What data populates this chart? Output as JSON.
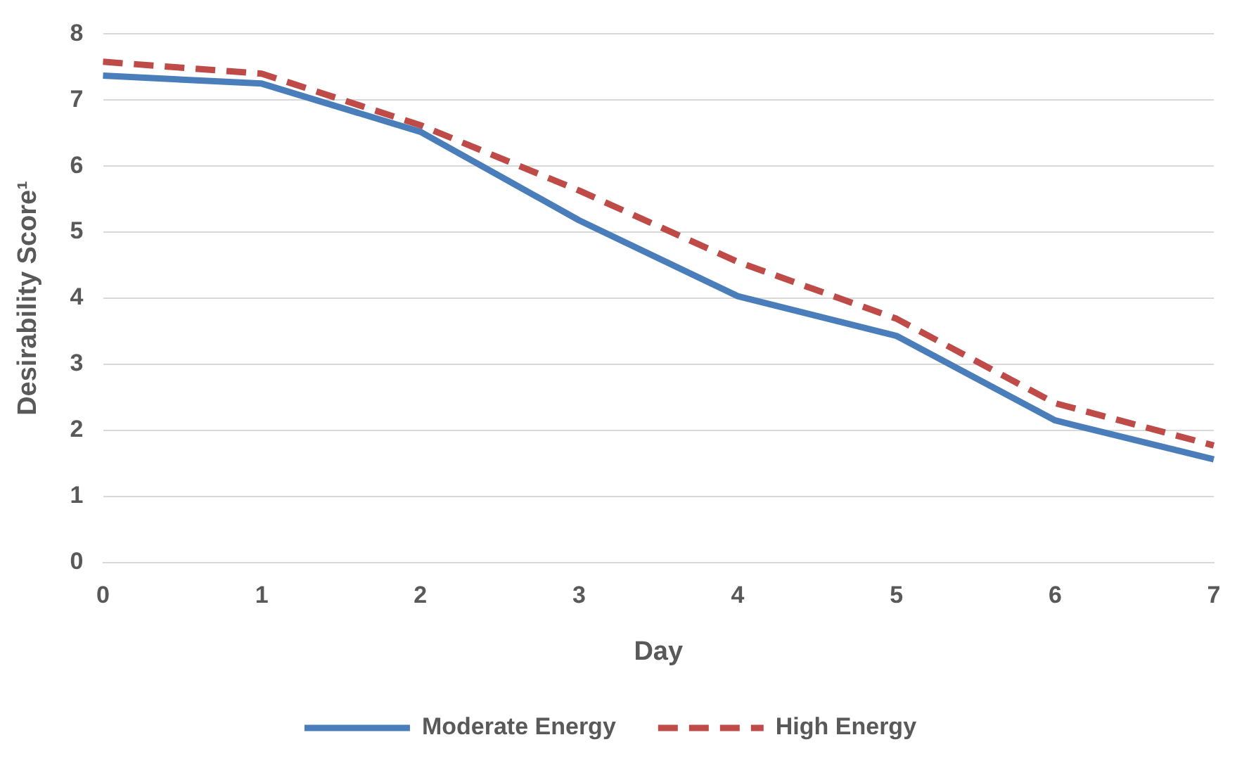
{
  "chart_data": {
    "type": "line",
    "xlabel": "Day",
    "ylabel": "Desirability Score¹",
    "categories": [
      "0",
      "1",
      "2",
      "3",
      "4",
      "5",
      "6",
      "7"
    ],
    "series": [
      {
        "name": "Moderate Energy",
        "color": "#4a7ebb",
        "line_style": "solid",
        "values": [
          7.37,
          7.25,
          6.52,
          5.18,
          4.03,
          3.43,
          2.15,
          1.56
        ]
      },
      {
        "name": "High Energy",
        "color": "#be4b48",
        "line_style": "dashed",
        "values": [
          7.58,
          7.4,
          6.62,
          5.63,
          4.55,
          3.69,
          2.41,
          1.77
        ]
      }
    ],
    "ylim": [
      0,
      8
    ],
    "yticks": [
      0,
      1,
      2,
      3,
      4,
      5,
      6,
      7,
      8
    ],
    "grid": "y",
    "legend": "bottom",
    "marker": "none"
  }
}
